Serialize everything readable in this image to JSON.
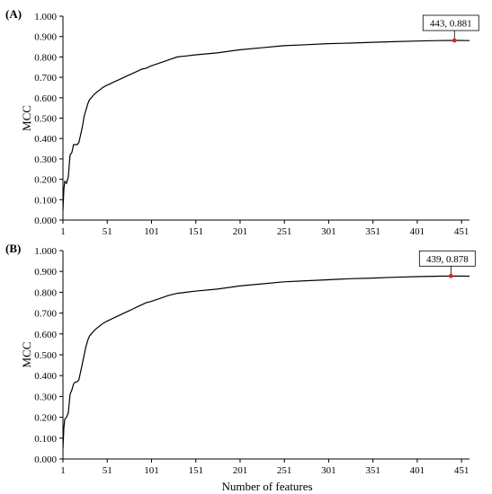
{
  "figure": {
    "xlabel": "Number of features"
  },
  "chart_data": [
    {
      "type": "line",
      "panel_label": "(A)",
      "xlabel": "",
      "ylabel": "MCC",
      "xlim": [
        1,
        460
      ],
      "ylim": [
        0,
        1.0
      ],
      "xticks": [
        "1",
        "51",
        "101",
        "151",
        "201",
        "251",
        "301",
        "351",
        "401",
        "451"
      ],
      "yticks": [
        "0.000",
        "0.100",
        "0.200",
        "0.300",
        "0.400",
        "0.500",
        "0.600",
        "0.700",
        "0.800",
        "0.900",
        "1.000"
      ],
      "grid": false,
      "line_color": "#000000",
      "series": [
        {
          "x": [
            1,
            2,
            3,
            5,
            7,
            9,
            11,
            13,
            15,
            17,
            19,
            21,
            23,
            25,
            27,
            29,
            31,
            33,
            35,
            37,
            40,
            43,
            46,
            50,
            55,
            60,
            65,
            70,
            75,
            80,
            85,
            90,
            95,
            100,
            110,
            120,
            130,
            140,
            150,
            175,
            200,
            225,
            250,
            275,
            300,
            325,
            350,
            375,
            400,
            425,
            443,
            460
          ],
          "values": [
            0.05,
            0.15,
            0.19,
            0.18,
            0.21,
            0.32,
            0.33,
            0.37,
            0.37,
            0.37,
            0.38,
            0.42,
            0.46,
            0.51,
            0.54,
            0.57,
            0.59,
            0.6,
            0.61,
            0.62,
            0.63,
            0.64,
            0.65,
            0.66,
            0.67,
            0.68,
            0.69,
            0.7,
            0.71,
            0.72,
            0.73,
            0.74,
            0.745,
            0.755,
            0.77,
            0.785,
            0.8,
            0.805,
            0.81,
            0.82,
            0.835,
            0.845,
            0.855,
            0.86,
            0.865,
            0.868,
            0.872,
            0.875,
            0.878,
            0.88,
            0.881,
            0.88
          ]
        }
      ],
      "highlight": {
        "x": 443,
        "y": 0.881,
        "label": "443, 0.881",
        "color": "#e0242b"
      }
    },
    {
      "type": "line",
      "panel_label": "(B)",
      "xlabel": "Number of features",
      "ylabel": "MCC",
      "xlim": [
        1,
        460
      ],
      "ylim": [
        0,
        1.0
      ],
      "xticks": [
        "1",
        "51",
        "101",
        "151",
        "201",
        "251",
        "301",
        "351",
        "401",
        "451"
      ],
      "yticks": [
        "0.000",
        "0.100",
        "0.200",
        "0.300",
        "0.400",
        "0.500",
        "0.600",
        "0.700",
        "0.800",
        "0.900",
        "1.000"
      ],
      "grid": false,
      "line_color": "#000000",
      "series": [
        {
          "x": [
            1,
            2,
            3,
            5,
            7,
            9,
            11,
            13,
            15,
            17,
            19,
            21,
            23,
            25,
            27,
            29,
            31,
            33,
            35,
            37,
            40,
            43,
            46,
            50,
            55,
            60,
            65,
            70,
            75,
            80,
            85,
            90,
            95,
            100,
            110,
            120,
            130,
            140,
            150,
            175,
            200,
            225,
            250,
            275,
            300,
            325,
            350,
            375,
            400,
            425,
            439,
            460
          ],
          "values": [
            0.05,
            0.15,
            0.19,
            0.2,
            0.22,
            0.31,
            0.33,
            0.36,
            0.37,
            0.37,
            0.38,
            0.42,
            0.46,
            0.5,
            0.54,
            0.57,
            0.59,
            0.6,
            0.61,
            0.62,
            0.63,
            0.64,
            0.65,
            0.66,
            0.67,
            0.68,
            0.69,
            0.7,
            0.71,
            0.72,
            0.73,
            0.74,
            0.75,
            0.755,
            0.77,
            0.785,
            0.795,
            0.8,
            0.805,
            0.815,
            0.83,
            0.84,
            0.85,
            0.855,
            0.86,
            0.865,
            0.868,
            0.872,
            0.875,
            0.877,
            0.878,
            0.877
          ]
        }
      ],
      "highlight": {
        "x": 439,
        "y": 0.878,
        "label": "439, 0.878",
        "color": "#e0242b"
      }
    }
  ]
}
